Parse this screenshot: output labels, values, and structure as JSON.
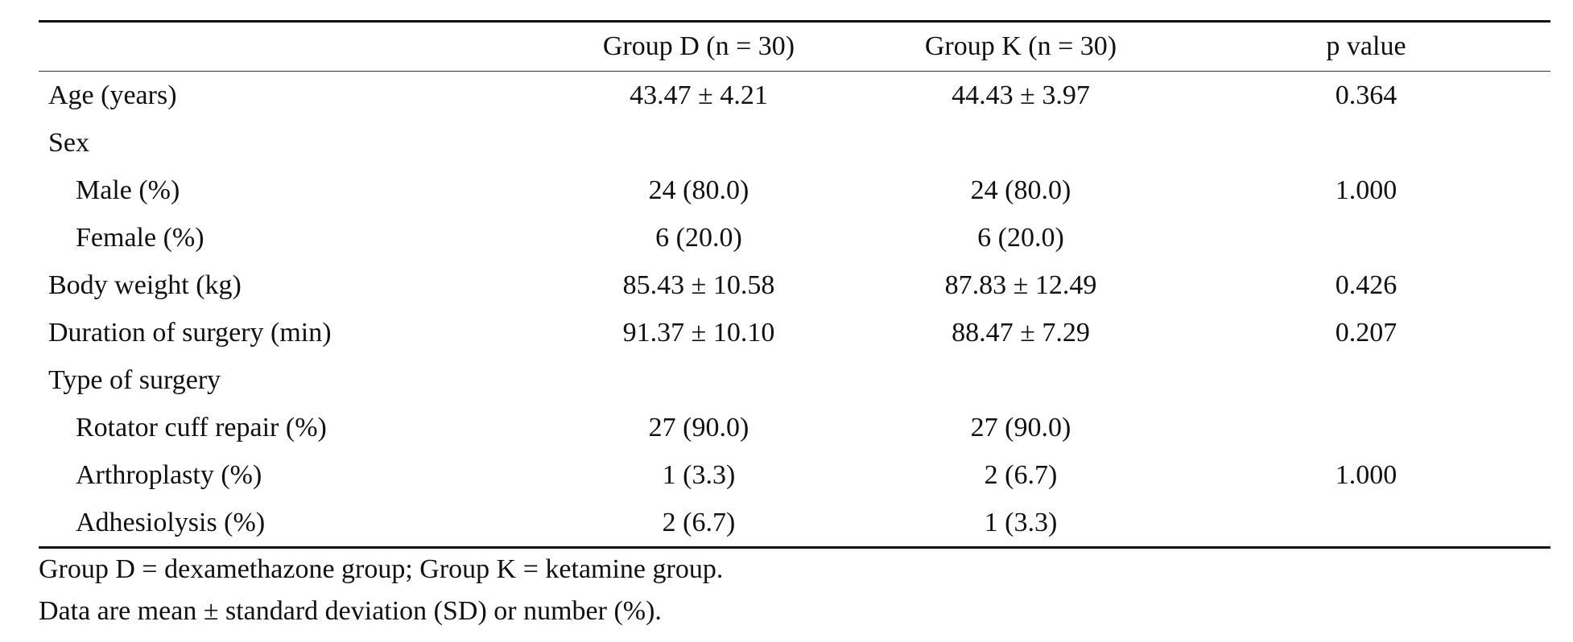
{
  "table": {
    "headers": [
      "",
      "Group D (n = 30)",
      "Group K (n = 30)",
      "p value"
    ],
    "rows": [
      {
        "label": "Age (years)",
        "group_d": "43.47 ± 4.21",
        "group_k": "44.43 ± 3.97",
        "p": "0.364"
      },
      {
        "label": "Sex",
        "group_d": "",
        "group_k": "",
        "p": ""
      },
      {
        "label": "Male (%)",
        "group_d": "24 (80.0)",
        "group_k": "24 (80.0)",
        "p": "1.000"
      },
      {
        "label": "Female (%)",
        "group_d": "6 (20.0)",
        "group_k": "6 (20.0)",
        "p": ""
      },
      {
        "label": "Body weight (kg)",
        "group_d": "85.43 ± 10.58",
        "group_k": "87.83 ± 12.49",
        "p": "0.426"
      },
      {
        "label": "Duration of surgery (min)",
        "group_d": "91.37 ± 10.10",
        "group_k": "88.47 ± 7.29",
        "p": "0.207"
      },
      {
        "label": "Type of surgery",
        "group_d": "",
        "group_k": "",
        "p": ""
      },
      {
        "label": "Rotator cuff repair (%)",
        "group_d": "27 (90.0)",
        "group_k": "27 (90.0)",
        "p": ""
      },
      {
        "label": "Arthroplasty (%)",
        "group_d": "1 (3.3)",
        "group_k": "2 (6.7)",
        "p": "1.000"
      },
      {
        "label": "Adhesiolysis (%)",
        "group_d": "2 (6.7)",
        "group_k": "1 (3.3)",
        "p": ""
      }
    ]
  },
  "notes": [
    "Group D = dexamethazone group; Group K = ketamine group.",
    "Data are mean ± standard deviation (SD) or number (%)."
  ]
}
